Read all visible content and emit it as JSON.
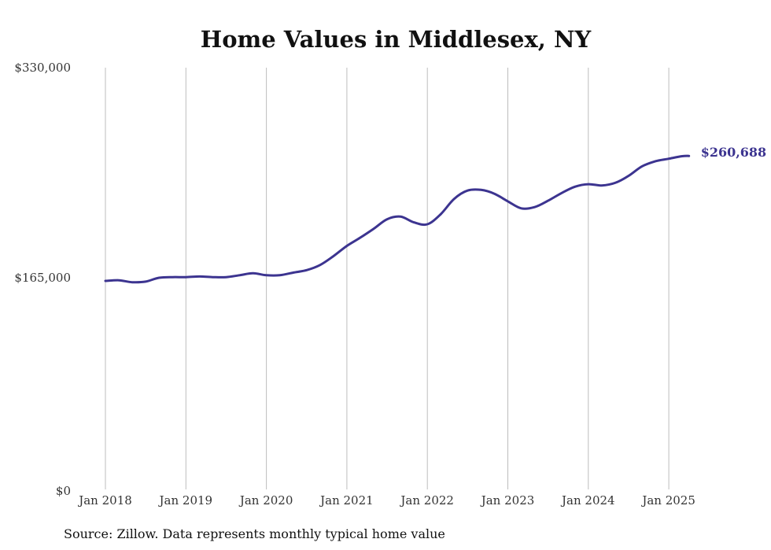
{
  "chart_data": {
    "type": "line",
    "title": "Home Values in Middlesex, NY",
    "xlabel": "",
    "ylabel": "",
    "x_tick_labels": [
      "Jan 2018",
      "Jan 2019",
      "Jan 2020",
      "Jan 2021",
      "Jan 2022",
      "Jan 2023",
      "Jan 2024",
      "Jan 2025"
    ],
    "y_tick_labels": [
      "$0",
      "$165,000",
      "$330,000"
    ],
    "ylim": [
      0,
      330000
    ],
    "xlim": [
      "2018-01",
      "2025-04"
    ],
    "grid": "vertical at January of each year",
    "end_label": "$260,688",
    "source": "Source: Zillow. Data represents monthly typical home value",
    "color": "#3c3490",
    "series": [
      {
        "x": [
          "2018-01",
          "2018-03",
          "2018-05",
          "2018-07",
          "2018-09",
          "2018-11",
          "2019-01",
          "2019-03",
          "2019-05",
          "2019-07",
          "2019-09",
          "2019-11",
          "2020-01",
          "2020-03",
          "2020-05",
          "2020-07",
          "2020-09",
          "2020-11",
          "2021-01",
          "2021-03",
          "2021-05",
          "2021-07",
          "2021-09",
          "2021-11",
          "2022-01",
          "2022-03",
          "2022-05",
          "2022-07",
          "2022-09",
          "2022-11",
          "2023-01",
          "2023-03",
          "2023-05",
          "2023-07",
          "2023-09",
          "2023-11",
          "2024-01",
          "2024-03",
          "2024-05",
          "2024-07",
          "2024-09",
          "2024-11",
          "2025-01",
          "2025-03",
          "2025-04"
        ],
        "values": [
          162500,
          163000,
          161500,
          162000,
          165000,
          165500,
          165500,
          166000,
          165500,
          165500,
          167000,
          168500,
          167000,
          167000,
          169000,
          171000,
          175000,
          182000,
          190000,
          196500,
          203500,
          211000,
          213000,
          208500,
          207000,
          215000,
          227000,
          233500,
          234000,
          231000,
          225000,
          219500,
          220500,
          225500,
          231500,
          236500,
          238500,
          237500,
          239500,
          245000,
          252500,
          256500,
          258500,
          260500,
          260688
        ]
      }
    ]
  }
}
